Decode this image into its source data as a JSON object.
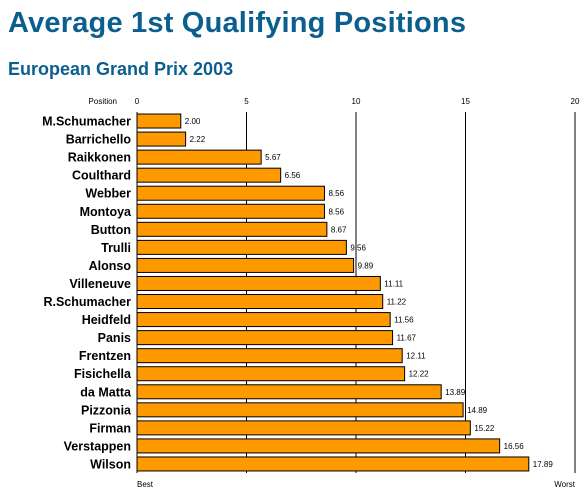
{
  "title": "Average 1st Qualifying Positions",
  "subtitle": "European Grand Prix 2003",
  "colors": {
    "title": "#0b5f8f",
    "bar_fill": "#ff9900",
    "bar_stroke": "#000000",
    "grid": "#000000"
  },
  "chart_data": {
    "type": "bar",
    "orientation": "horizontal",
    "title": "Average 1st Qualifying Positions",
    "subtitle": "European Grand Prix 2003",
    "xlabel": "Position",
    "x_start_label": "Best",
    "x_end_label": "Worst",
    "xlim": [
      0,
      20
    ],
    "xticks": [
      0,
      5,
      10,
      15,
      20
    ],
    "grid": true,
    "categories": [
      "M.Schumacher",
      "Barrichello",
      "Raikkonen",
      "Coulthard",
      "Webber",
      "Montoya",
      "Button",
      "Trulli",
      "Alonso",
      "Villeneuve",
      "R.Schumacher",
      "Heidfeld",
      "Panis",
      "Frentzen",
      "Fisichella",
      "da Matta",
      "Pizzonia",
      "Firman",
      "Verstappen",
      "Wilson"
    ],
    "values": [
      2.0,
      2.22,
      5.67,
      6.56,
      8.56,
      8.56,
      8.67,
      9.56,
      9.89,
      11.11,
      11.22,
      11.56,
      11.67,
      12.11,
      12.22,
      13.89,
      14.89,
      15.22,
      16.56,
      17.89
    ],
    "value_labels": [
      "2.00",
      "2.22",
      "5.67",
      "6.56",
      "8.56",
      "8.56",
      "8.67",
      "9.56",
      "9.89",
      "11.11",
      "11.22",
      "11.56",
      "11.67",
      "12.11",
      "12.22",
      "13.89",
      "14.89",
      "15.22",
      "16.56",
      "17.89"
    ]
  }
}
